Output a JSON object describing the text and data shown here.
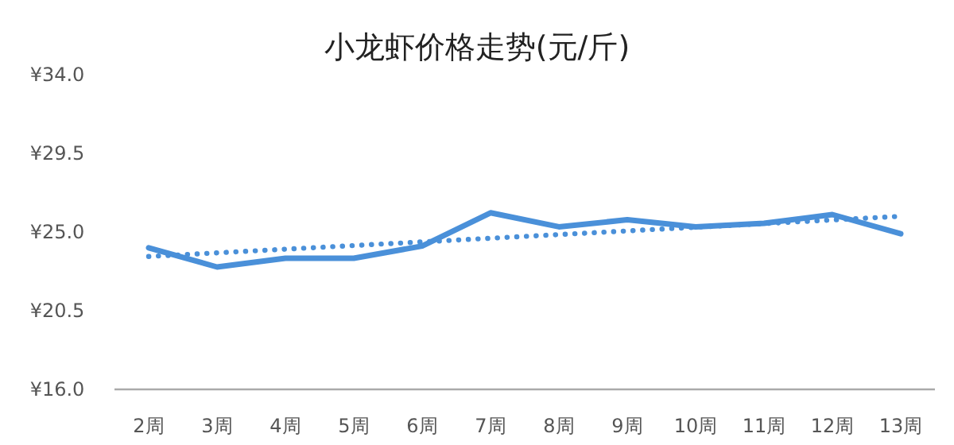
{
  "chart_data": {
    "type": "line",
    "title": "小龙虾价格走势(元/斤)",
    "categories": [
      "2周",
      "3周",
      "4周",
      "5周",
      "6周",
      "7周",
      "8周",
      "9周",
      "10周",
      "11周",
      "12周",
      "13周"
    ],
    "series": [
      {
        "color": "#4a90d9",
        "values": [
          24.1,
          23.0,
          23.5,
          23.5,
          24.2,
          26.1,
          25.3,
          25.7,
          25.3,
          25.5,
          26.0,
          24.9
        ],
        "line_style": "solid"
      },
      {
        "type": "line",
        "color": "#4a90d9",
        "x": [
          "2周",
          "13周"
        ],
        "values": [
          23.6,
          25.9
        ],
        "line_style": "dotted"
      }
    ],
    "ylim": [
      16,
      34
    ],
    "yticks": [
      {
        "value": 16,
        "label": "¥16.0"
      },
      {
        "value": 20.5,
        "label": "¥20.5"
      },
      {
        "value": 25,
        "label": "¥25.0"
      },
      {
        "value": 29.5,
        "label": "¥29.5"
      },
      {
        "value": 34,
        "label": "¥34.0"
      }
    ],
    "grid": false
  }
}
